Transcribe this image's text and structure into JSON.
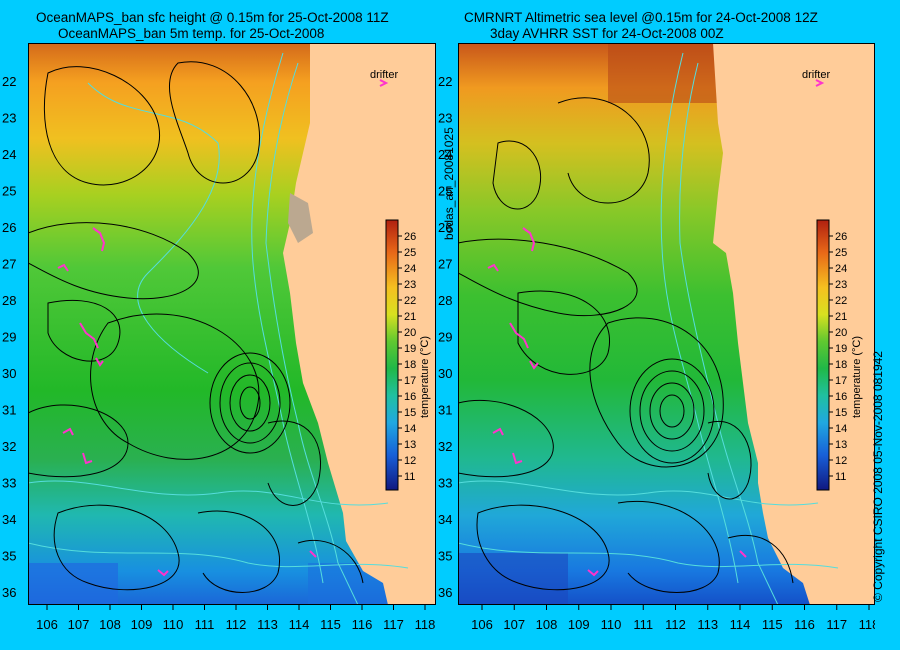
{
  "left_panel": {
    "title_line1": "OceanMAPS_ban sfc height @ 0.15m for 25-Oct-2008 11Z",
    "title_line2": "OceanMAPS_ban 5m temp. for 25-Oct-2008",
    "drifter_label": "drifter"
  },
  "right_panel": {
    "title_line1": "CMRNRT Altimetric sea level  @0.15m  for 24-Oct-2008 12Z",
    "title_line2": "3day AVHRR SST for 24-Oct-2008 00Z",
    "drifter_label": "drifter"
  },
  "side_label_middle": "bodas_an_20081025",
  "side_label_right": "© Copyright CSIRO 2008   05-Nov-2008 081942",
  "colorbar": {
    "label": "temperature (°C)",
    "ticks": [
      "26",
      "25",
      "24",
      "23",
      "22",
      "21",
      "20",
      "19",
      "18",
      "17",
      "16",
      "15",
      "14",
      "13",
      "12",
      "11"
    ]
  },
  "axes": {
    "lat_ticks": [
      "22",
      "23",
      "24",
      "25",
      "26",
      "27",
      "28",
      "29",
      "30",
      "31",
      "32",
      "33",
      "34",
      "35",
      "36"
    ],
    "lon_ticks": [
      "106",
      "107",
      "108",
      "109",
      "110",
      "111",
      "112",
      "113",
      "114",
      "115",
      "116",
      "117",
      "118"
    ]
  },
  "colors": {
    "background": "#00ccff",
    "land": "#ffcc99",
    "contour": "#000000",
    "bathymetry": "#55dddd",
    "drifter": "#ff33cc"
  }
}
